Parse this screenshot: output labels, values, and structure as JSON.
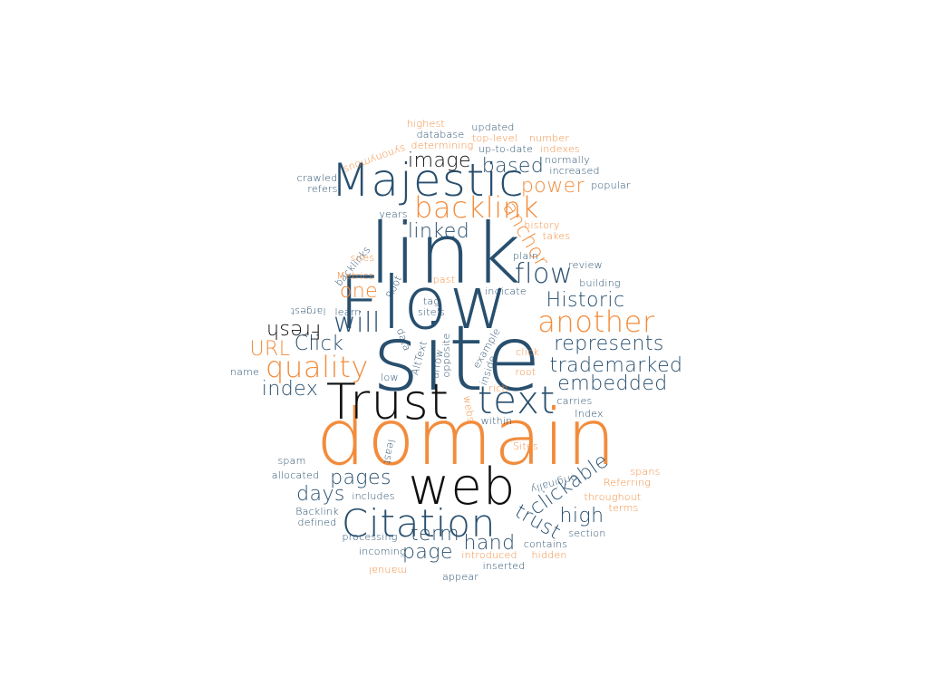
{
  "palette": {
    "background": "#ffffff",
    "navy": "#284f6e",
    "orange": "#f28c3c",
    "black": "#0f0f0f"
  },
  "words": [
    {
      "text": "domain",
      "color": "orange"
    },
    {
      "text": "site",
      "color": "navy"
    },
    {
      "text": "link",
      "color": "navy"
    },
    {
      "text": "Flow",
      "color": "navy"
    },
    {
      "text": "web",
      "color": "black"
    },
    {
      "text": "Trust",
      "color": "black"
    },
    {
      "text": "Majestic",
      "color": "navy"
    },
    {
      "text": "Citation",
      "color": "navy"
    },
    {
      "text": "text",
      "color": "navy"
    },
    {
      "text": "backlink",
      "color": "orange"
    },
    {
      "text": "another",
      "color": "orange"
    },
    {
      "text": "quality",
      "color": "orange"
    },
    {
      "text": "flow",
      "color": "navy"
    },
    {
      "text": "will",
      "color": "navy"
    },
    {
      "text": "image",
      "color": "black"
    },
    {
      "text": "based",
      "color": "navy"
    },
    {
      "text": "power",
      "color": "orange"
    },
    {
      "text": "anchor",
      "color": "orange"
    },
    {
      "text": "Historic",
      "color": "navy"
    },
    {
      "text": "represents",
      "color": "navy"
    },
    {
      "text": "trademarked",
      "color": "navy"
    },
    {
      "text": "embedded",
      "color": "navy"
    },
    {
      "text": "clickable",
      "color": "navy"
    },
    {
      "text": "trust",
      "color": "navy"
    },
    {
      "text": "high",
      "color": "navy"
    },
    {
      "text": "pages",
      "color": "navy"
    },
    {
      "text": "days",
      "color": "navy"
    },
    {
      "text": "term",
      "color": "navy"
    },
    {
      "text": "hand",
      "color": "navy"
    },
    {
      "text": "page",
      "color": "navy"
    },
    {
      "text": "index",
      "color": "navy"
    },
    {
      "text": "Click",
      "color": "navy"
    },
    {
      "text": "URL",
      "color": "orange"
    },
    {
      "text": "one",
      "color": "orange"
    },
    {
      "text": "Fresh",
      "color": "black"
    },
    {
      "text": "linked",
      "color": "navy"
    },
    {
      "text": "highest",
      "color": "orange"
    },
    {
      "text": "synonymous",
      "color": "orange"
    },
    {
      "text": "database",
      "color": "navy"
    },
    {
      "text": "determining",
      "color": "orange"
    },
    {
      "text": "updated",
      "color": "navy"
    },
    {
      "text": "top-level",
      "color": "orange"
    },
    {
      "text": "number",
      "color": "orange"
    },
    {
      "text": "up-to-date",
      "color": "navy"
    },
    {
      "text": "indexes",
      "color": "orange"
    },
    {
      "text": "normally",
      "color": "navy"
    },
    {
      "text": "increased",
      "color": "navy"
    },
    {
      "text": "popular",
      "color": "navy"
    },
    {
      "text": "crawled",
      "color": "navy"
    },
    {
      "text": "refers",
      "color": "navy"
    },
    {
      "text": "years",
      "color": "navy"
    },
    {
      "text": "history",
      "color": "orange"
    },
    {
      "text": "takes",
      "color": "orange"
    },
    {
      "text": "backlinks",
      "color": "navy"
    },
    {
      "text": "sites",
      "color": "orange"
    },
    {
      "text": "Metrics",
      "color": "orange"
    },
    {
      "text": "Root",
      "color": "navy"
    },
    {
      "text": "past",
      "color": "orange"
    },
    {
      "text": "plain",
      "color": "navy"
    },
    {
      "text": "review",
      "color": "navy"
    },
    {
      "text": "building",
      "color": "navy"
    },
    {
      "text": "indicate",
      "color": "navy"
    },
    {
      "text": "tag",
      "color": "navy"
    },
    {
      "text": "site's",
      "color": "navy"
    },
    {
      "text": "learn",
      "color": "navy"
    },
    {
      "text": "largest",
      "color": "navy"
    },
    {
      "text": "data",
      "color": "navy"
    },
    {
      "text": "AltText",
      "color": "navy"
    },
    {
      "text": "arrow",
      "color": "navy"
    },
    {
      "text": "opposite",
      "color": "navy"
    },
    {
      "text": "example",
      "color": "navy"
    },
    {
      "text": "inside",
      "color": "navy"
    },
    {
      "text": "click",
      "color": "orange"
    },
    {
      "text": "root",
      "color": "orange"
    },
    {
      "text": "name",
      "color": "navy"
    },
    {
      "text": "low",
      "color": "navy"
    },
    {
      "text": "rich",
      "color": "orange"
    },
    {
      "text": "carries",
      "color": "navy"
    },
    {
      "text": "webs",
      "color": "orange"
    },
    {
      "text": "within",
      "color": "navy"
    },
    {
      "text": "Index",
      "color": "navy"
    },
    {
      "text": "least",
      "color": "navy"
    },
    {
      "text": "Sites",
      "color": "orange"
    },
    {
      "text": "originally",
      "color": "navy"
    },
    {
      "text": "spans",
      "color": "orange"
    },
    {
      "text": "Referring",
      "color": "orange"
    },
    {
      "text": "throughout",
      "color": "orange"
    },
    {
      "text": "terms",
      "color": "orange"
    },
    {
      "text": "spam",
      "color": "navy"
    },
    {
      "text": "allocated",
      "color": "navy"
    },
    {
      "text": "includes",
      "color": "navy"
    },
    {
      "text": "Backlink",
      "color": "navy"
    },
    {
      "text": "defined",
      "color": "navy"
    },
    {
      "text": "processing",
      "color": "navy"
    },
    {
      "text": "section",
      "color": "navy"
    },
    {
      "text": "contains",
      "color": "navy"
    },
    {
      "text": "incoming",
      "color": "navy"
    },
    {
      "text": "introduced",
      "color": "orange"
    },
    {
      "text": "hidden",
      "color": "orange"
    },
    {
      "text": "manual",
      "color": "orange"
    },
    {
      "text": "inserted",
      "color": "navy"
    },
    {
      "text": "appear",
      "color": "navy"
    }
  ]
}
